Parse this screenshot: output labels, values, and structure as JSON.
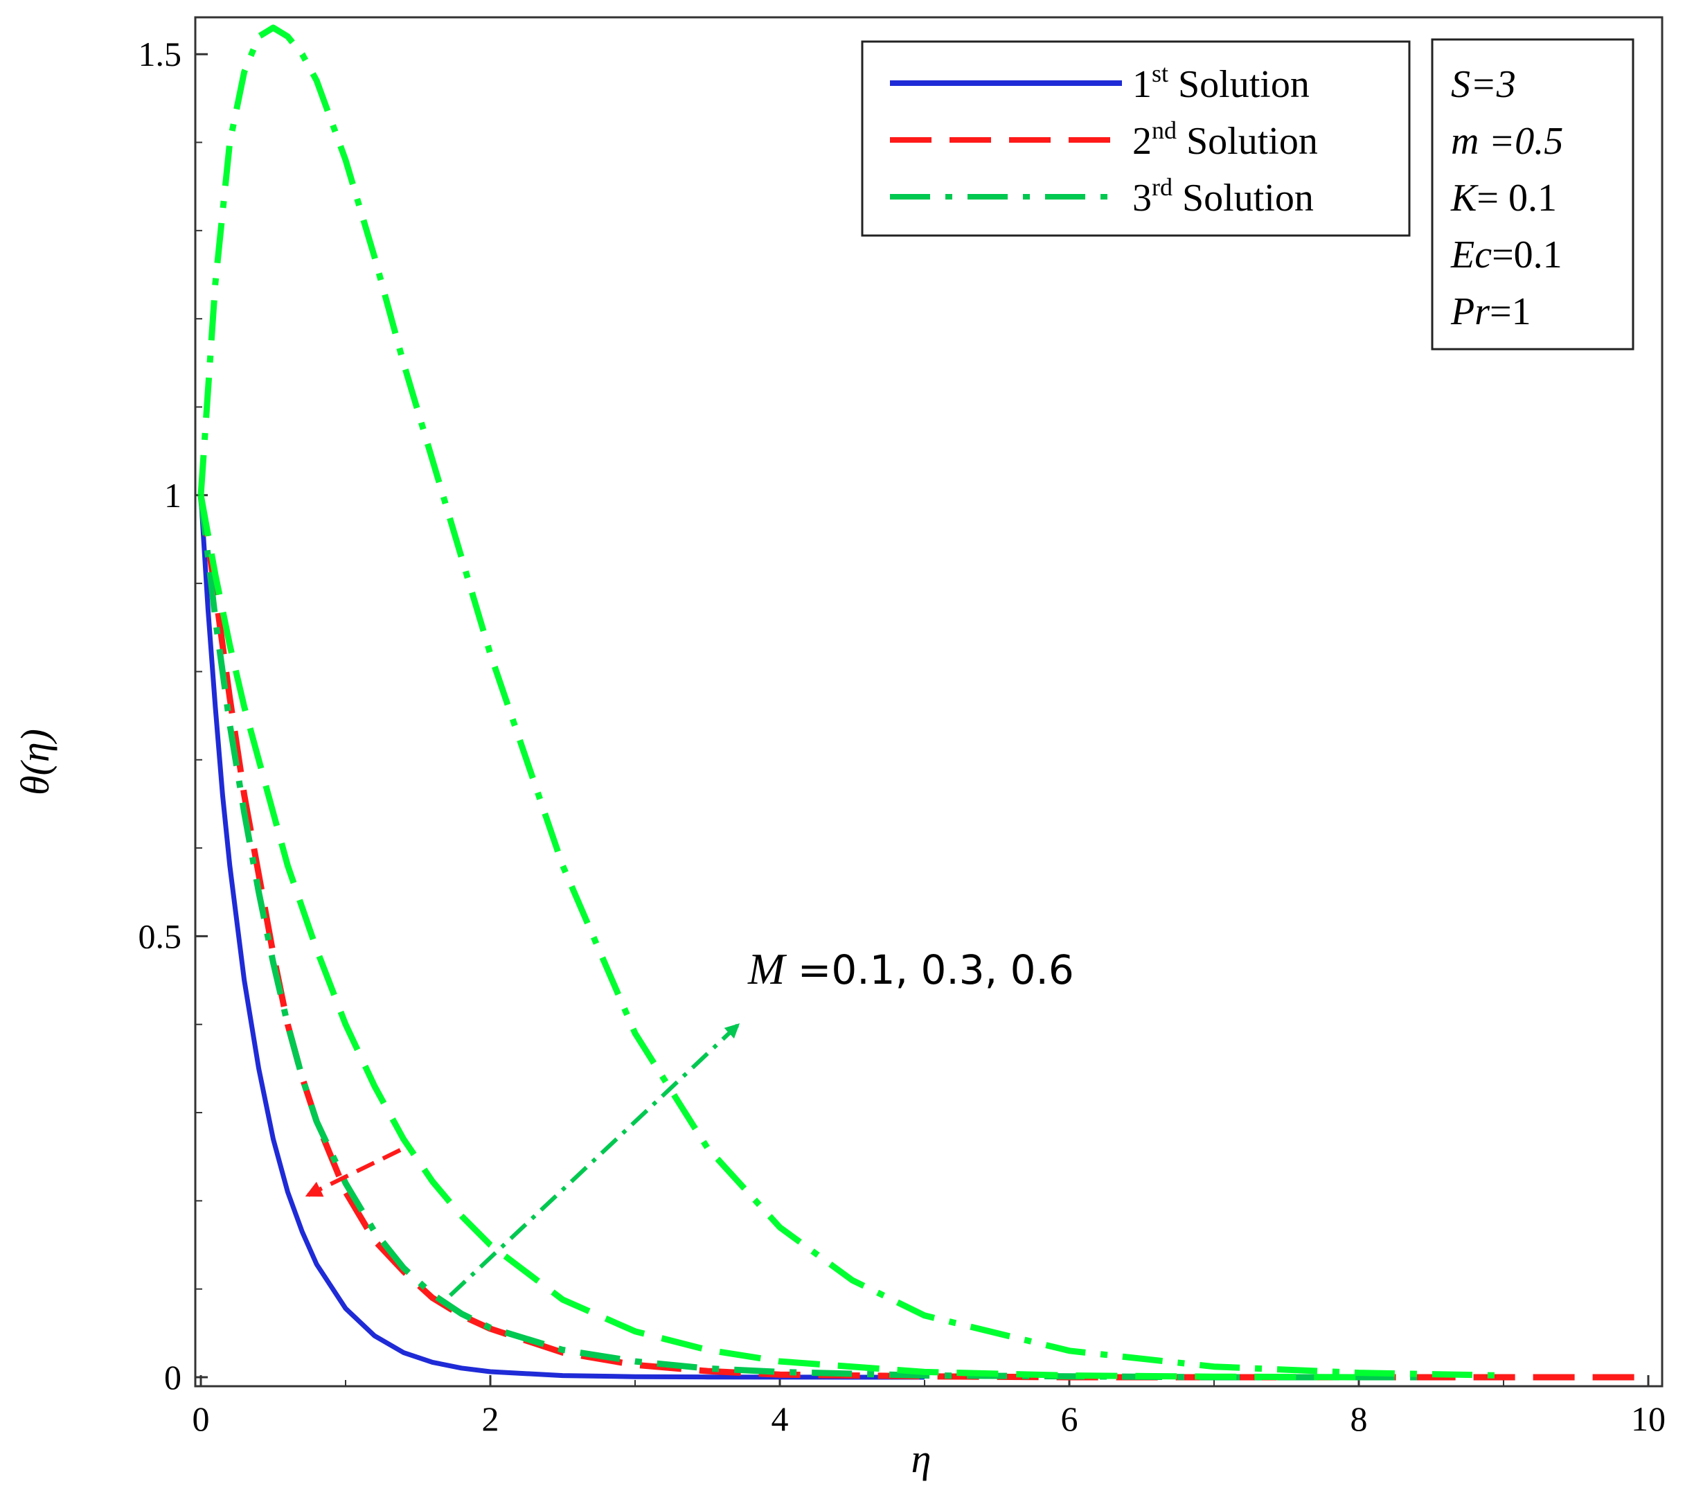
{
  "chart_data": {
    "type": "line",
    "xlabel": "η",
    "ylabel": "θ(η)",
    "xlim": [
      0,
      10
    ],
    "ylim": [
      0,
      1.53
    ],
    "xticks": [
      "0",
      "2",
      "4",
      "6",
      "8",
      "10"
    ],
    "yticks": [
      "0",
      "0.5",
      "1",
      "1.5"
    ],
    "grid": false,
    "legend": {
      "placement": "top-right",
      "entries": [
        {
          "num": "1",
          "sup": "st",
          "text": " Solution",
          "color": "#1f2bd6",
          "style": "solid"
        },
        {
          "num": "2",
          "sup": "nd",
          "text": " Solution",
          "color": "#ff1a1a",
          "style": "dashed"
        },
        {
          "num": "3",
          "sup": "rd",
          "text": " Solution",
          "color": "#00c850",
          "style": "dashdot"
        }
      ]
    },
    "params": [
      {
        "name": "S",
        "value": "=3",
        "value_italic": true
      },
      {
        "name": "m",
        "value": " =0.5",
        "value_italic": true
      },
      {
        "name": "K",
        "value": "= 0.1",
        "value_italic": false
      },
      {
        "name": "Ec",
        "value": "=0.1",
        "value_italic": false
      },
      {
        "name": "Pr",
        "value": "=1",
        "value_italic": false
      }
    ],
    "annotation": {
      "symbol": "M",
      "text": " =0.1, 0.3, 0.6"
    },
    "series": [
      {
        "style": "solid",
        "color": "#1f2bd6",
        "x": [
          0,
          0.05,
          0.1,
          0.15,
          0.2,
          0.3,
          0.4,
          0.5,
          0.6,
          0.7,
          0.8,
          1.0,
          1.2,
          1.4,
          1.6,
          1.8,
          2.0,
          2.5,
          3.0,
          3.5,
          4.0,
          5.0
        ],
        "y": [
          1.0,
          0.87,
          0.76,
          0.66,
          0.58,
          0.45,
          0.35,
          0.27,
          0.21,
          0.165,
          0.128,
          0.078,
          0.047,
          0.028,
          0.017,
          0.0104,
          0.0063,
          0.0019,
          0.0006,
          0.0002,
          0.0001,
          0.0
        ]
      },
      {
        "style": "dashed",
        "color": "#ff1a1a",
        "x": [
          0,
          0.1,
          0.2,
          0.3,
          0.4,
          0.5,
          0.6,
          0.7,
          0.8,
          1.0,
          1.2,
          1.4,
          1.6,
          1.8,
          2.0,
          2.5,
          3.0,
          3.5,
          4.0,
          5.0,
          6.0,
          7.0,
          8.0,
          9.0,
          10.0
        ],
        "y": [
          1.0,
          0.89,
          0.77,
          0.66,
          0.57,
          0.48,
          0.4,
          0.34,
          0.29,
          0.21,
          0.155,
          0.12,
          0.09,
          0.07,
          0.055,
          0.028,
          0.014,
          0.007,
          0.003,
          0.001,
          0.0,
          0.0,
          0.0,
          0.0,
          0.0
        ]
      },
      {
        "style": "dashdot",
        "color": "#00c850",
        "x": [
          0,
          0.1,
          0.2,
          0.3,
          0.4,
          0.5,
          0.6,
          0.7,
          0.8,
          1.0,
          1.2,
          1.4,
          1.6,
          1.8,
          2.0,
          2.5,
          3.0,
          3.5,
          4.0,
          5.0,
          6.0,
          7.0,
          8.0,
          8.5
        ],
        "y": [
          1.0,
          0.86,
          0.74,
          0.64,
          0.55,
          0.47,
          0.4,
          0.34,
          0.29,
          0.22,
          0.165,
          0.124,
          0.094,
          0.072,
          0.056,
          0.031,
          0.018,
          0.01,
          0.006,
          0.002,
          0.001,
          0.0,
          0.0,
          0.0
        ]
      },
      {
        "style": "dashed",
        "color": "#00ff30",
        "x": [
          0,
          0.1,
          0.2,
          0.3,
          0.4,
          0.5,
          0.6,
          0.8,
          1.0,
          1.2,
          1.4,
          1.6,
          1.8,
          2.0,
          2.5,
          3.0,
          3.5,
          4.0,
          5.0,
          6.0,
          7.0,
          8.0
        ],
        "y": [
          1.0,
          0.91,
          0.83,
          0.76,
          0.7,
          0.64,
          0.58,
          0.485,
          0.4,
          0.33,
          0.27,
          0.222,
          0.183,
          0.15,
          0.088,
          0.052,
          0.031,
          0.018,
          0.006,
          0.002,
          0.0006,
          0.0
        ]
      },
      {
        "style": "dashdot",
        "color": "#00ff30",
        "x": [
          0,
          0.1,
          0.2,
          0.3,
          0.4,
          0.5,
          0.6,
          0.7,
          0.8,
          1.0,
          1.2,
          1.4,
          1.6,
          1.8,
          2.0,
          2.5,
          3.0,
          3.5,
          4.0,
          4.5,
          5.0,
          6.0,
          7.0,
          8.0,
          9.0
        ],
        "y": [
          1.0,
          1.24,
          1.4,
          1.48,
          1.52,
          1.53,
          1.52,
          1.5,
          1.47,
          1.38,
          1.27,
          1.15,
          1.04,
          0.93,
          0.82,
          0.58,
          0.39,
          0.26,
          0.17,
          0.11,
          0.07,
          0.03,
          0.012,
          0.005,
          0.002
        ]
      }
    ]
  }
}
